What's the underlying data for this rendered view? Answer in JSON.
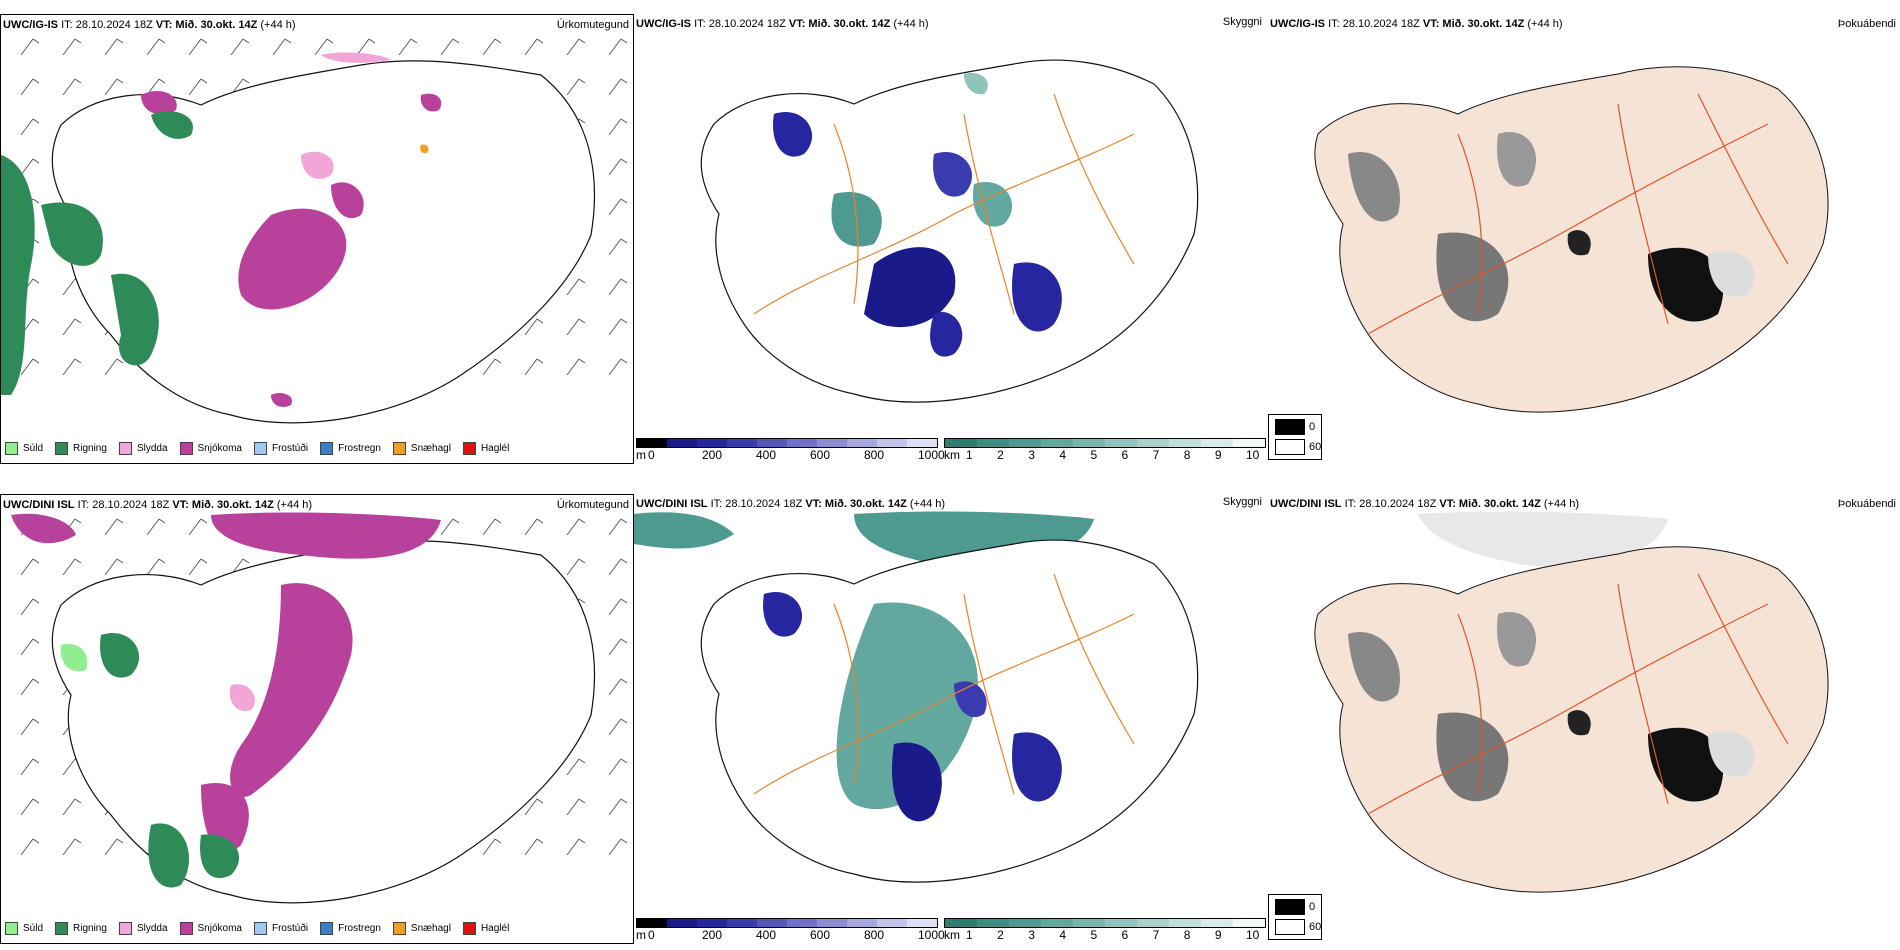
{
  "rows": [
    {
      "model": "UWC/IG-IS",
      "it_label": "IT: 28.10.2024 18Z",
      "vt_label": "VT: Mið. 30.okt. 14Z",
      "lead": "(+44 h)",
      "left_label": "Úrkomutegund",
      "mid_label": "Skyggni",
      "right_label": "Þokuábendi"
    },
    {
      "model": "UWC/DINI ISL",
      "it_label": "IT: 28.10.2024 18Z",
      "vt_label": "VT: Mið. 30.okt. 14Z",
      "lead": "(+44 h)",
      "left_label": "Úrkomutegund",
      "mid_label": "Skyggni",
      "right_label": "Þokuábendi"
    }
  ],
  "precip_legend": [
    {
      "label": "Súld",
      "color": "#90ee90"
    },
    {
      "label": "Rigning",
      "color": "#2e8b57"
    },
    {
      "label": "Slydda",
      "color": "#f2a6d8"
    },
    {
      "label": "Snjókoma",
      "color": "#b8419c"
    },
    {
      "label": "Frostúði",
      "color": "#9ec9f0"
    },
    {
      "label": "Frostregn",
      "color": "#3a7ec6"
    },
    {
      "label": "Snæhagl",
      "color": "#f0a020"
    },
    {
      "label": "Haglél",
      "color": "#e01010"
    }
  ],
  "ceiling_scale": {
    "unit": "m",
    "ticks": [
      "0",
      "200",
      "400",
      "600",
      "800",
      "1000"
    ],
    "colors": [
      "#000000",
      "#1a1a8a",
      "#2626a0",
      "#3b3bb0",
      "#5555bb",
      "#7070c8",
      "#8c8cd3",
      "#a8a8de",
      "#c4c4ea",
      "#e0e0f4"
    ]
  },
  "visibility_scale": {
    "unit": "km",
    "ticks": [
      "1",
      "2",
      "3",
      "4",
      "5",
      "6",
      "7",
      "8",
      "9",
      "10"
    ],
    "colors": [
      "#2e7d73",
      "#3d8c82",
      "#4e9a90",
      "#62a89e",
      "#78b6ad",
      "#8fc4bc",
      "#a8d2cb",
      "#c1dfda",
      "#daece9",
      "#f2f8f7"
    ]
  },
  "fog_scale": {
    "high_label": "0",
    "low_label": "60"
  },
  "colors": {
    "roads": "#e8832a",
    "land_fog": "#f5e3d5",
    "fog_roads": "#e0552a"
  }
}
